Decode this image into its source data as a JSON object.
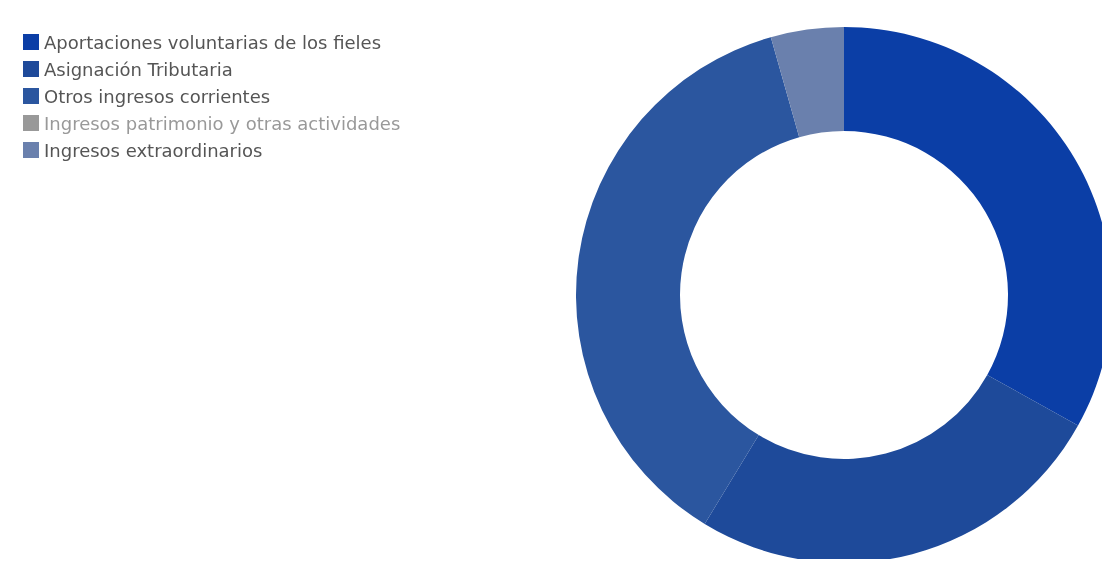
{
  "chart_data": {
    "type": "donut",
    "categories": [
      "Aportaciones voluntarias de los fieles",
      "Asignación Tributaria",
      "Otros ingresos corrientes",
      "Ingresos patrimonio y otras actividades",
      "Ingresos extraordinarios"
    ],
    "values": [
      33.1,
      25.6,
      36.9,
      null,
      4.4
    ],
    "colors": [
      "#0b3ea6",
      "#1e4a9a",
      "#2b569f",
      "#4263a6",
      "#6a80ad"
    ],
    "legend": "top left"
  }
}
